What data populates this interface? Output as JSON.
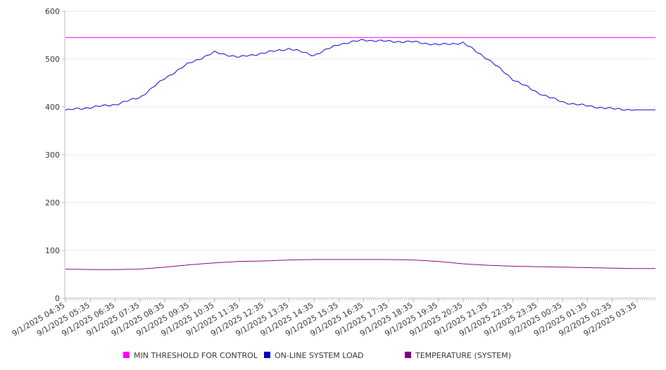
{
  "chart_data": {
    "type": "line",
    "title": "",
    "xlabel": "",
    "ylabel": "",
    "ylim": [
      0,
      600
    ],
    "yticks": [
      0,
      100,
      200,
      300,
      400,
      500,
      600
    ],
    "grid": true,
    "legend_position": "bottom",
    "x_tick_labels": [
      "9/1/2025 04:35",
      "9/1/2025 05:35",
      "9/1/2025 06:35",
      "9/1/2025 07:35",
      "9/1/2025 08:35",
      "9/1/2025 09:35",
      "9/1/2025 10:35",
      "9/1/2025 11:35",
      "9/1/2025 12:35",
      "9/1/2025 13:35",
      "9/1/2025 14:35",
      "9/1/2025 15:35",
      "9/1/2025 16:35",
      "9/1/2025 17:35",
      "9/1/2025 18:35",
      "9/1/2025 19:35",
      "9/1/2025 20:35",
      "9/1/2025 21:35",
      "9/1/2025 22:35",
      "9/1/2025 23:35",
      "9/2/2025 00:35",
      "9/2/2025 01:35",
      "9/2/2025 02:35",
      "9/2/2025 03:35"
    ],
    "series": [
      {
        "name": "MIN THRESHOLD FOR CONTROL",
        "color": "#ff00ff",
        "points": [
          [
            "9/1/2025 04:35",
            545
          ],
          [
            "9/2/2025 03:35",
            545
          ]
        ]
      },
      {
        "name": "ON-LINE SYSTEM LOAD",
        "color": "#0000cc",
        "points": [
          [
            "9/1/2025 04:35",
            393
          ],
          [
            "9/1/2025 05:35",
            399
          ],
          [
            "9/1/2025 06:35",
            405
          ],
          [
            "9/1/2025 07:35",
            420
          ],
          [
            "9/1/2025 08:35",
            460
          ],
          [
            "9/1/2025 09:35",
            492
          ],
          [
            "9/1/2025 10:35",
            514
          ],
          [
            "9/1/2025 11:35",
            504
          ],
          [
            "9/1/2025 12:35",
            513
          ],
          [
            "9/1/2025 13:35",
            522
          ],
          [
            "9/1/2025 14:35",
            508
          ],
          [
            "9/1/2025 15:35",
            531
          ],
          [
            "9/1/2025 16:35",
            540
          ],
          [
            "9/1/2025 17:35",
            537
          ],
          [
            "9/1/2025 18:35",
            536
          ],
          [
            "9/1/2025 19:35",
            530
          ],
          [
            "9/1/2025 20:35",
            534
          ],
          [
            "9/1/2025 21:35",
            500
          ],
          [
            "9/1/2025 22:35",
            458
          ],
          [
            "9/1/2025 23:35",
            430
          ],
          [
            "9/2/2025 00:35",
            410
          ],
          [
            "9/2/2025 01:35",
            402
          ],
          [
            "9/2/2025 02:35",
            396
          ],
          [
            "9/2/2025 03:35",
            394
          ]
        ]
      },
      {
        "name": "TEMPERATURE (SYSTEM)",
        "color": "#800080",
        "points": [
          [
            "9/1/2025 04:35",
            61
          ],
          [
            "9/1/2025 05:35",
            60
          ],
          [
            "9/1/2025 06:35",
            60
          ],
          [
            "9/1/2025 07:35",
            61
          ],
          [
            "9/1/2025 08:35",
            65
          ],
          [
            "9/1/2025 09:35",
            70
          ],
          [
            "9/1/2025 10:35",
            74
          ],
          [
            "9/1/2025 11:35",
            77
          ],
          [
            "9/1/2025 12:35",
            78
          ],
          [
            "9/1/2025 13:35",
            80
          ],
          [
            "9/1/2025 14:35",
            81
          ],
          [
            "9/1/2025 15:35",
            81
          ],
          [
            "9/1/2025 16:35",
            81
          ],
          [
            "9/1/2025 17:35",
            81
          ],
          [
            "9/1/2025 18:35",
            80
          ],
          [
            "9/1/2025 19:35",
            77
          ],
          [
            "9/1/2025 20:35",
            72
          ],
          [
            "9/1/2025 21:35",
            69
          ],
          [
            "9/1/2025 22:35",
            67
          ],
          [
            "9/1/2025 23:35",
            66
          ],
          [
            "9/2/2025 00:35",
            65
          ],
          [
            "9/2/2025 01:35",
            64
          ],
          [
            "9/2/2025 02:35",
            63
          ],
          [
            "9/2/2025 03:35",
            62
          ]
        ]
      }
    ]
  }
}
